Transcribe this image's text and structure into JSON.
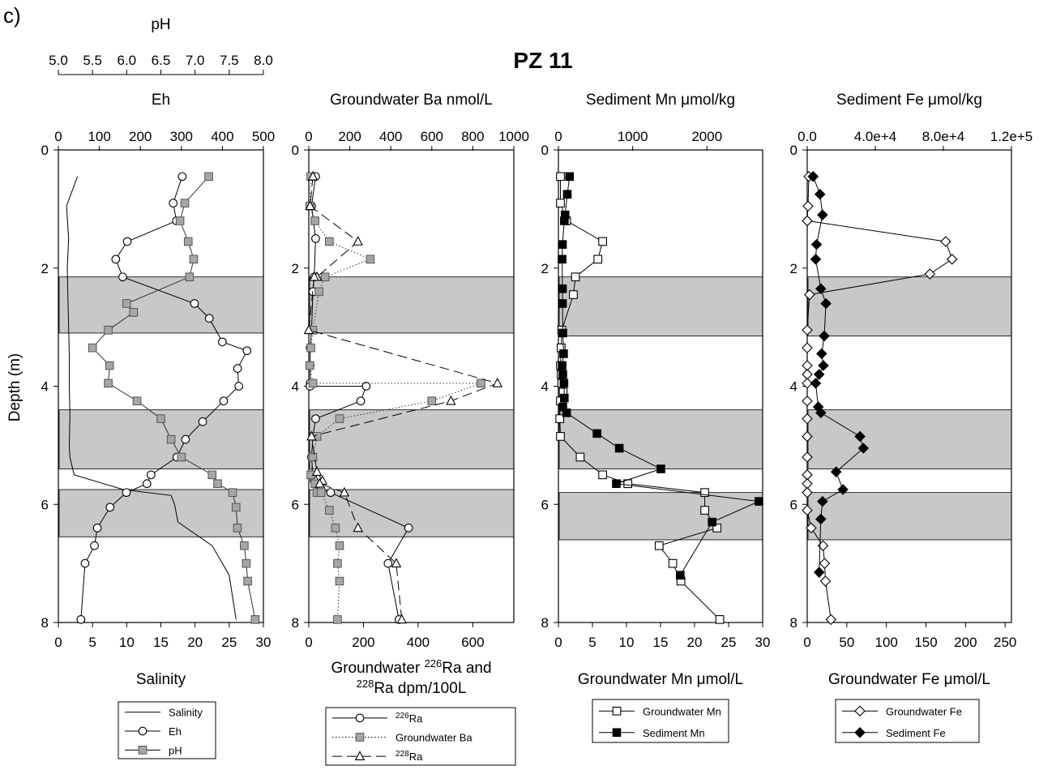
{
  "panel_letter": "c)",
  "figure_title": "PZ 11",
  "y_axis_label": "Depth (m)",
  "chart_data": [
    {
      "type": "line",
      "panel": 1,
      "ylabel": "Depth (m)",
      "ylim": [
        0,
        8
      ],
      "y_inverted": true,
      "y_ticks": [
        0,
        2,
        4,
        6,
        8
      ],
      "bands_depth": [
        [
          2.15,
          3.1
        ],
        [
          4.4,
          5.4
        ],
        [
          5.75,
          6.55
        ]
      ],
      "top_axes": [
        {
          "label": "pH",
          "range": [
            5.0,
            8.0
          ],
          "ticks": [
            "5.0",
            "5.5",
            "6.0",
            "6.5",
            "7.0",
            "7.5",
            "8.0"
          ]
        },
        {
          "label": "Eh",
          "range": [
            0,
            500
          ],
          "ticks": [
            "0",
            "100",
            "200",
            "300",
            "400",
            "500"
          ]
        }
      ],
      "bottom_axis": {
        "label": "Salinity",
        "range": [
          0,
          30
        ],
        "ticks": [
          "0",
          "5",
          "10",
          "15",
          "20",
          "25",
          "30"
        ]
      },
      "series": [
        {
          "name": "Salinity",
          "axis": "bottom",
          "marker": "none",
          "color": "#000000",
          "x": [
            2.8,
            1.2,
            1.5,
            1.3,
            1.4,
            1.5,
            1.6,
            1.6,
            1.7,
            1.6,
            1.7,
            2.3,
            9.5,
            16.5,
            17.0,
            17.5,
            22.5,
            25.0,
            26.0
          ],
          "y": [
            0.45,
            0.95,
            1.5,
            2.0,
            2.5,
            3.0,
            3.5,
            4.0,
            4.5,
            5.0,
            5.2,
            5.5,
            5.75,
            5.85,
            6.0,
            6.3,
            6.7,
            7.2,
            7.95
          ]
        },
        {
          "name": "Eh",
          "axis": "top2",
          "marker": "circle",
          "color": "#000000",
          "x": [
            302,
            280,
            288,
            168,
            140,
            157,
            332,
            368,
            400,
            460,
            437,
            440,
            403,
            352,
            310,
            289,
            226,
            216,
            166,
            126,
            95,
            88,
            65,
            55
          ],
          "y": [
            0.45,
            0.9,
            1.2,
            1.55,
            1.85,
            2.15,
            2.6,
            2.85,
            3.25,
            3.4,
            3.7,
            4.0,
            4.25,
            4.6,
            4.9,
            5.2,
            5.5,
            5.65,
            5.8,
            6.05,
            6.4,
            6.7,
            7.0,
            7.95
          ]
        },
        {
          "name": "pH",
          "axis": "top1",
          "marker": "square",
          "color": "#999999",
          "x": [
            7.2,
            6.85,
            6.78,
            6.9,
            6.98,
            6.92,
            6.0,
            6.1,
            5.73,
            5.5,
            5.75,
            5.73,
            6.15,
            6.5,
            6.65,
            6.8,
            7.25,
            7.33,
            7.55,
            7.6,
            7.62,
            7.72,
            7.75,
            7.77,
            7.88
          ],
          "y": [
            0.45,
            0.9,
            1.2,
            1.55,
            1.85,
            2.15,
            2.6,
            2.75,
            3.05,
            3.35,
            3.65,
            3.95,
            4.25,
            4.55,
            4.9,
            5.2,
            5.5,
            5.65,
            5.8,
            6.05,
            6.4,
            6.7,
            7.0,
            7.3,
            7.95
          ]
        }
      ],
      "legend": {
        "entries": [
          "Salinity",
          "Eh",
          "pH"
        ]
      }
    },
    {
      "type": "line",
      "panel": 2,
      "ylim": [
        0,
        8
      ],
      "y_inverted": true,
      "y_ticks": [
        0,
        2,
        4,
        6,
        8
      ],
      "bands_depth": [
        [
          2.15,
          3.1
        ],
        [
          4.4,
          5.4
        ],
        [
          5.75,
          6.55
        ]
      ],
      "top_axes": [
        {
          "label": "Groundwater Ba nmol/L",
          "range": [
            0,
            1000
          ],
          "ticks": [
            "0",
            "200",
            "400",
            "600",
            "800",
            "1000"
          ]
        }
      ],
      "bottom_axis": {
        "label": "Groundwater 226Ra and 228Ra dpm/100L",
        "label_parts": [
          "Groundwater ",
          "226",
          "Ra and",
          "228",
          "Ra dpm/100L"
        ],
        "range": [
          0,
          750
        ],
        "ticks": [
          "0",
          "200",
          "400",
          "600"
        ]
      },
      "series": [
        {
          "name": "226Ra",
          "axis": "bottom",
          "marker": "circle",
          "color": "#000000",
          "line": "solid",
          "x": [
            25,
            10,
            25,
            20,
            15,
            10,
            5,
            5,
            5,
            5,
            210,
            190,
            25,
            15,
            10,
            15,
            20,
            30,
            45,
            80,
            365,
            290,
            330
          ],
          "y": [
            0.45,
            0.95,
            1.5,
            2.15,
            2.4,
            3.05,
            3.35,
            3.65,
            3.95,
            4.0,
            4.0,
            4.25,
            4.55,
            4.85,
            5.2,
            5.5,
            5.6,
            5.65,
            5.75,
            5.8,
            6.4,
            7.0,
            7.95
          ]
        },
        {
          "name": "Groundwater Ba",
          "axis": "top1",
          "marker": "square",
          "color": "#999999",
          "line": "dotted",
          "x": [
            10,
            5,
            30,
            100,
            300,
            80,
            50,
            20,
            10,
            5,
            20,
            840,
            600,
            150,
            40,
            20,
            10,
            30,
            40,
            60,
            100,
            130,
            150,
            140,
            150,
            140
          ],
          "y": [
            0.45,
            0.95,
            1.2,
            1.55,
            1.85,
            2.15,
            2.4,
            3.05,
            3.35,
            3.65,
            3.95,
            3.95,
            4.25,
            4.55,
            4.85,
            5.2,
            5.5,
            5.65,
            5.8,
            5.8,
            6.1,
            6.4,
            6.7,
            7.0,
            7.3,
            7.95
          ]
        },
        {
          "name": "228Ra",
          "axis": "bottom",
          "marker": "triangle",
          "color": "#000000",
          "line": "dashed",
          "x": [
            15,
            5,
            180,
            30,
            20,
            0,
            690,
            520,
            10,
            30,
            50,
            40,
            130,
            180,
            320,
            340
          ],
          "y": [
            0.45,
            0.95,
            1.55,
            2.15,
            2.15,
            3.05,
            3.95,
            4.25,
            4.85,
            5.45,
            5.6,
            5.65,
            5.8,
            6.4,
            7.0,
            7.95
          ]
        }
      ],
      "legend": {
        "entries": [
          "226Ra",
          "Groundwater Ba",
          "228Ra"
        ]
      }
    },
    {
      "type": "line",
      "panel": 3,
      "ylim": [
        0,
        8
      ],
      "y_inverted": true,
      "y_ticks": [
        0,
        2,
        4,
        6,
        8
      ],
      "bands_depth": [
        [
          2.15,
          3.15
        ],
        [
          4.4,
          5.4
        ],
        [
          5.8,
          6.6
        ]
      ],
      "top_axes": [
        {
          "label": "Sediment Mn μmol/kg",
          "range": [
            0,
            2750
          ],
          "ticks": [
            "0",
            "1000",
            "2000"
          ]
        }
      ],
      "bottom_axis": {
        "label": "Groundwater Mn μmol/L",
        "range": [
          0,
          30
        ],
        "ticks": [
          "0",
          "5",
          "10",
          "15",
          "20",
          "25",
          "30"
        ]
      },
      "series": [
        {
          "name": "Groundwater Mn",
          "axis": "bottom",
          "marker": "square_open",
          "color": "#000000",
          "x": [
            0.3,
            0.3,
            1.2,
            6.5,
            5.8,
            2.5,
            2.2,
            0.5,
            0.4,
            0.3,
            0.4,
            0.5,
            0.7,
            0.3,
            0.2,
            0.3,
            3.2,
            6.5,
            10.2,
            21.5,
            21.5,
            23.3,
            14.8,
            16.8,
            18.0,
            23.7
          ],
          "y": [
            0.45,
            0.9,
            1.2,
            1.55,
            1.85,
            2.15,
            2.45,
            3.05,
            3.35,
            3.65,
            3.8,
            3.95,
            4.1,
            4.25,
            4.55,
            4.85,
            5.2,
            5.5,
            5.65,
            5.8,
            6.1,
            6.4,
            6.7,
            7.0,
            7.3,
            7.95
          ]
        },
        {
          "name": "Sediment Mn",
          "axis": "top1",
          "marker": "square_filled",
          "color": "#000000",
          "x": [
            150,
            120,
            90,
            80,
            55,
            50,
            55,
            55,
            60,
            70,
            50,
            60,
            75,
            80,
            60,
            110,
            520,
            820,
            1380,
            780,
            2700,
            2070,
            1640
          ],
          "y": [
            0.45,
            0.75,
            1.1,
            1.2,
            1.6,
            1.85,
            2.35,
            2.6,
            3.1,
            3.45,
            3.65,
            3.8,
            3.95,
            4.2,
            4.35,
            4.45,
            4.8,
            5.05,
            5.4,
            5.65,
            5.95,
            6.3,
            7.2
          ]
        }
      ],
      "legend": {
        "entries": [
          "Groundwater Mn",
          "Sediment Mn"
        ]
      }
    },
    {
      "type": "line",
      "panel": 4,
      "ylim": [
        0,
        8
      ],
      "y_inverted": true,
      "y_ticks": [
        0,
        2,
        4,
        6,
        8
      ],
      "bands_depth": [
        [
          2.15,
          3.15
        ],
        [
          4.4,
          5.4
        ],
        [
          5.8,
          6.6
        ]
      ],
      "top_axes": [
        {
          "label": "Sediment Fe μmol/kg",
          "range": [
            0,
            120000
          ],
          "ticks": [
            "0.0",
            "4.0e+4",
            "8.0e+4",
            "1.2e+5"
          ]
        }
      ],
      "bottom_axis": {
        "label": "Groundwater Fe μmol/L",
        "range": [
          0,
          258
        ],
        "ticks": [
          "0",
          "50",
          "100",
          "150",
          "200",
          "250"
        ]
      },
      "series": [
        {
          "name": "Groundwater Fe",
          "axis": "bottom",
          "marker": "diamond_open",
          "color": "#000000",
          "x": [
            2,
            1,
            0,
            175,
            183,
            155,
            3,
            0,
            0,
            0,
            0,
            0,
            0,
            0,
            0,
            0,
            0,
            0,
            0,
            0,
            5,
            20,
            22,
            23,
            30
          ],
          "y": [
            0.45,
            0.95,
            1.2,
            1.55,
            1.85,
            2.1,
            2.45,
            3.05,
            3.35,
            3.65,
            3.8,
            3.95,
            4.25,
            4.55,
            4.85,
            5.2,
            5.5,
            5.65,
            5.8,
            6.1,
            6.4,
            6.7,
            7.0,
            7.3,
            7.95
          ]
        },
        {
          "name": "Sediment Fe",
          "axis": "top1",
          "marker": "diamond_filled",
          "color": "#000000",
          "x": [
            3500,
            7500,
            9000,
            5500,
            5000,
            8000,
            11000,
            10000,
            8500,
            9500,
            7000,
            5000,
            6500,
            8000,
            31000,
            33000,
            17000,
            21000,
            9000,
            8000,
            7000
          ],
          "y": [
            0.45,
            0.75,
            1.1,
            1.6,
            1.85,
            2.35,
            2.6,
            3.15,
            3.45,
            3.65,
            3.8,
            3.95,
            4.35,
            4.45,
            4.85,
            5.05,
            5.45,
            5.75,
            5.95,
            6.25,
            7.15
          ]
        }
      ],
      "legend": {
        "entries": [
          "Groundwater Fe",
          "Sediment Fe"
        ]
      }
    }
  ]
}
